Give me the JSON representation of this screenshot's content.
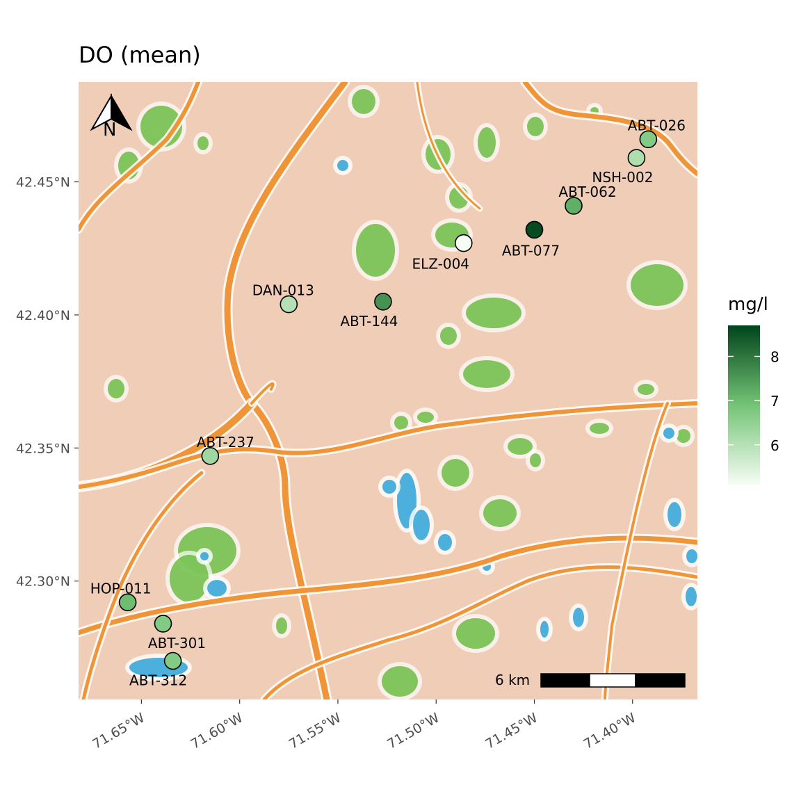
{
  "title": "DO (mean)",
  "legend": {
    "title": "mg/l",
    "ticks": [
      {
        "value": 8,
        "label": "8"
      },
      {
        "value": 7,
        "label": "7"
      },
      {
        "value": 6,
        "label": "6"
      }
    ],
    "range": [
      5.1,
      8.7
    ],
    "color_low": "#f7fcf5",
    "color_mid": "#74c476",
    "color_high": "#00441b"
  },
  "axes": {
    "x_ticks": [
      {
        "lon": -71.65,
        "label": "71.65°W"
      },
      {
        "lon": -71.6,
        "label": "71.60°W"
      },
      {
        "lon": -71.55,
        "label": "71.55°W"
      },
      {
        "lon": -71.5,
        "label": "71.50°W"
      },
      {
        "lon": -71.45,
        "label": "71.45°W"
      },
      {
        "lon": -71.4,
        "label": "71.40°W"
      }
    ],
    "y_ticks": [
      {
        "lat": 42.45,
        "label": "42.45°N"
      },
      {
        "lat": 42.4,
        "label": "42.40°N"
      },
      {
        "lat": 42.35,
        "label": "42.35°N"
      },
      {
        "lat": 42.3,
        "label": "42.30°N"
      }
    ],
    "lon_range": [
      -71.682,
      -71.367
    ],
    "lat_range": [
      42.2555,
      42.4875
    ]
  },
  "scale_bar": {
    "label": "6 km"
  },
  "north_arrow": {
    "label": "N",
    "icon": "north-arrow-icon"
  },
  "basemap": {
    "style": "watercolor",
    "land": "#f0cdb6",
    "road": "#ef8f2c",
    "park": "#6cbd45",
    "water": "#3aa7d9"
  },
  "sites": [
    {
      "id": "ABT-026",
      "lon": -71.392,
      "lat": 42.466,
      "value": 6.7
    },
    {
      "id": "NSH-002",
      "lon": -71.398,
      "lat": 42.459,
      "value": 6.1
    },
    {
      "id": "ABT-062",
      "lon": -71.43,
      "lat": 42.441,
      "value": 7.2
    },
    {
      "id": "ABT-077",
      "lon": -71.45,
      "lat": 42.432,
      "value": 8.6
    },
    {
      "id": "ELZ-004",
      "lon": -71.486,
      "lat": 42.427,
      "value": 5.1
    },
    {
      "id": "ABT-144",
      "lon": -71.527,
      "lat": 42.405,
      "value": 7.6
    },
    {
      "id": "DAN-013",
      "lon": -71.575,
      "lat": 42.404,
      "value": 6.0
    },
    {
      "id": "ABT-237",
      "lon": -71.615,
      "lat": 42.347,
      "value": 6.3
    },
    {
      "id": "HOP-011",
      "lon": -71.657,
      "lat": 42.292,
      "value": 7.0
    },
    {
      "id": "ABT-301",
      "lon": -71.639,
      "lat": 42.284,
      "value": 6.7
    },
    {
      "id": "ABT-312",
      "lon": -71.634,
      "lat": 42.27,
      "value": 6.7
    }
  ]
}
